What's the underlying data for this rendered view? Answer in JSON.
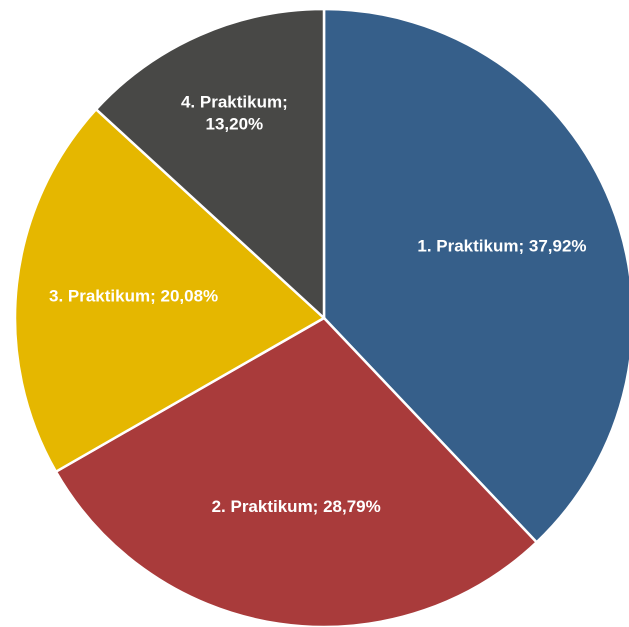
{
  "chart_data": {
    "type": "pie",
    "categories": [
      "1. Praktikum",
      "2. Praktikum",
      "3. Praktikum",
      "4. Praktikum"
    ],
    "values": [
      37.92,
      28.79,
      20.08,
      13.2
    ],
    "value_labels": [
      "1. Praktikum; 37,92%",
      "2. Praktikum; 28,79%",
      "3. Praktikum; 20,08%",
      "4. Praktikum; 13,20%"
    ],
    "colors": [
      "#365f8a",
      "#a93b3b",
      "#e5b700",
      "#484846"
    ]
  }
}
